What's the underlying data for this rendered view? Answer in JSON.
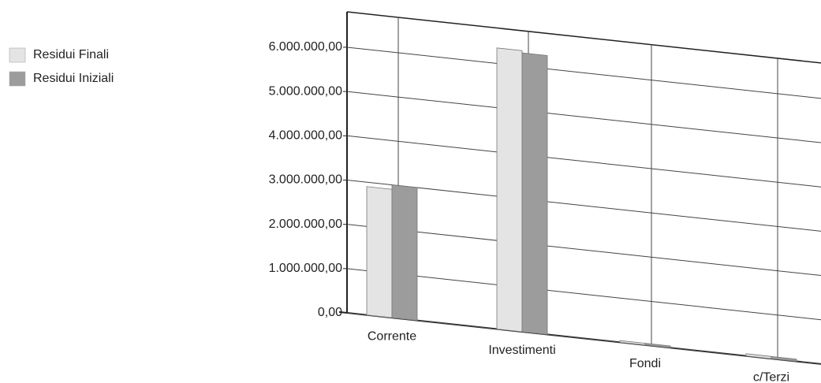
{
  "chart_data": {
    "type": "bar",
    "categories": [
      "Corrente",
      "Investimenti",
      "Fondi",
      "c/Terzi"
    ],
    "series": [
      {
        "name": "Residui Finali",
        "color": "#e4e4e4",
        "values": [
          2900000,
          6350000,
          40000,
          50000
        ]
      },
      {
        "name": "Residui Iniziali",
        "color": "#9c9c9c",
        "values": [
          3000000,
          6300000,
          40000,
          50000
        ]
      }
    ],
    "ylim": [
      0,
      6800000
    ],
    "yticks": [
      {
        "value": 0,
        "label": "0,00"
      },
      {
        "value": 1000000,
        "label": "1.000.000,00"
      },
      {
        "value": 2000000,
        "label": "2.000.000,00"
      },
      {
        "value": 3000000,
        "label": "3.000.000,00"
      },
      {
        "value": 4000000,
        "label": "4.000.000,00"
      },
      {
        "value": 5000000,
        "label": "5.000.000,00"
      },
      {
        "value": 6000000,
        "label": "6.000.000,00"
      }
    ],
    "grid": true
  }
}
